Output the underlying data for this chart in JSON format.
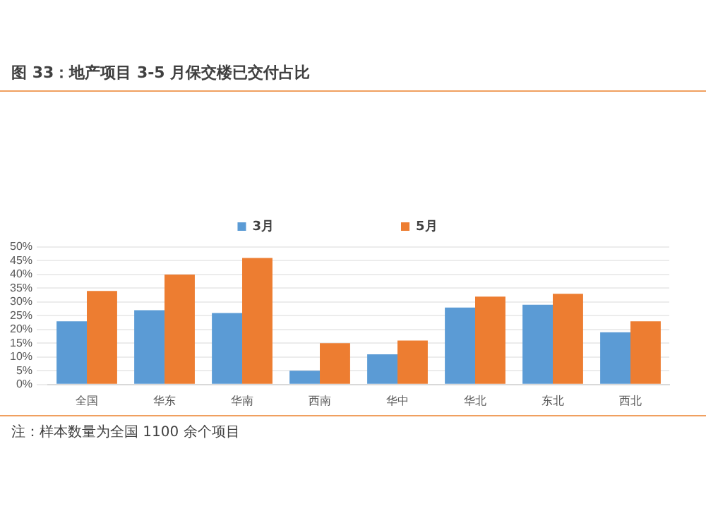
{
  "chart_data": {
    "type": "bar",
    "title": "图 33：地产项目 3-5 月保交楼已交付占比",
    "categories": [
      "全国",
      "华东",
      "华南",
      "西南",
      "华中",
      "华北",
      "东北",
      "西北"
    ],
    "series": [
      {
        "name": "3月",
        "color": "#5b9bd5",
        "values": [
          23,
          27,
          26,
          5,
          11,
          28,
          29,
          19
        ]
      },
      {
        "name": "5月",
        "color": "#ed7d31",
        "values": [
          34,
          40,
          46,
          15,
          16,
          32,
          33,
          23
        ]
      }
    ],
    "ylim": [
      0,
      50
    ],
    "yticks": [
      {
        "value": 0,
        "label": "0%"
      },
      {
        "value": 5,
        "label": "5%"
      },
      {
        "value": 10,
        "label": "10%"
      },
      {
        "value": 15,
        "label": "15%"
      },
      {
        "value": 20,
        "label": "20%"
      },
      {
        "value": 25,
        "label": "25%"
      },
      {
        "value": 30,
        "label": "30%"
      },
      {
        "value": 35,
        "label": "35%"
      },
      {
        "value": 40,
        "label": "40%"
      },
      {
        "value": 45,
        "label": "45%"
      },
      {
        "value": 50,
        "label": "50%"
      }
    ],
    "grid": "y",
    "legend": "top",
    "annotations": [
      "注：样本数量为全国 1100 余个项目"
    ]
  }
}
